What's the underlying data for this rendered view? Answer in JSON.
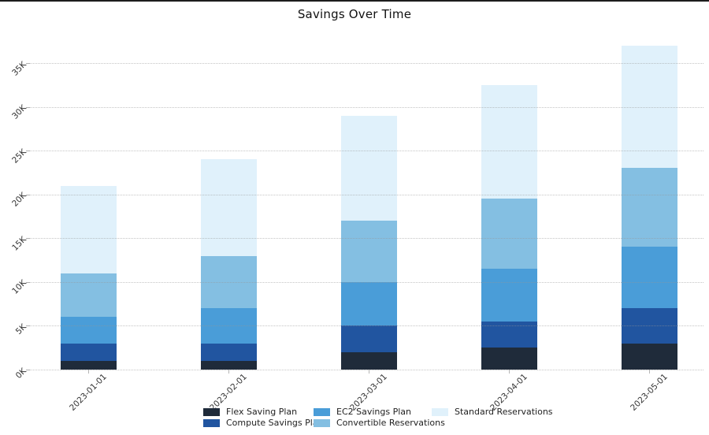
{
  "chart_data": {
    "type": "bar",
    "stacked": true,
    "title": "Savings Over Time",
    "xlabel": "",
    "ylabel": "",
    "categories": [
      "2023-01-01",
      "2023-02-01",
      "2023-03-01",
      "2023-04-01",
      "2023-05-01"
    ],
    "series": [
      {
        "name": "Flex Saving Plan",
        "color": "#1f2b3a",
        "values": [
          1000,
          1000,
          2000,
          2500,
          3000
        ]
      },
      {
        "name": "Compute Savings Plan",
        "color": "#2155a0",
        "values": [
          2000,
          2000,
          3000,
          3000,
          4000
        ]
      },
      {
        "name": "EC2 Savings Plan",
        "color": "#4a9dd8",
        "values": [
          3000,
          4000,
          5000,
          6000,
          7000
        ]
      },
      {
        "name": "Convertible Reservations",
        "color": "#84bfe2",
        "values": [
          5000,
          6000,
          7000,
          8000,
          9000
        ]
      },
      {
        "name": "Standard Reservations",
        "color": "#e0f1fb",
        "values": [
          10000,
          11000,
          12000,
          13000,
          14000
        ]
      }
    ],
    "totals": [
      21000,
      24000,
      29000,
      32500,
      37000
    ],
    "y_ticks": [
      "0K",
      "5K",
      "10K",
      "15K",
      "20K",
      "25K",
      "30K",
      "35K"
    ],
    "ylim": [
      0,
      37000
    ],
    "grid": "horizontal-dotted",
    "legend_position": "bottom-center",
    "legend_columns": [
      [
        "Flex Saving Plan",
        "Compute Savings Plan"
      ],
      [
        "EC2 Savings Plan",
        "Convertible Reservations"
      ],
      [
        "Standard Reservations"
      ]
    ]
  }
}
